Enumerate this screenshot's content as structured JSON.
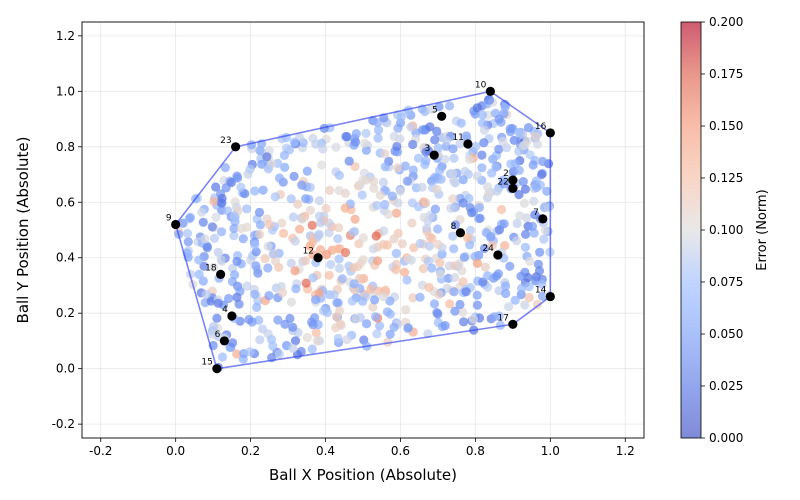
{
  "chart_data": {
    "type": "scatter",
    "title": "",
    "xlabel": "Ball X Position (Absolute)",
    "ylabel": "Ball Y Position (Absolute)",
    "xlim": [
      -0.25,
      1.25
    ],
    "ylim": [
      -0.25,
      1.25
    ],
    "xticks": [
      "-0.2",
      "0.0",
      "0.2",
      "0.4",
      "0.6",
      "0.8",
      "1.0",
      "1.2"
    ],
    "yticks": [
      "-0.2",
      "0.0",
      "0.2",
      "0.4",
      "0.6",
      "0.8",
      "1.0",
      "1.2"
    ],
    "grid": true,
    "colorbar": {
      "label": "Error (Norm)",
      "colormap": "coolwarm",
      "range": [
        0.0,
        0.2
      ],
      "ticks": [
        "0.000",
        "0.025",
        "0.050",
        "0.075",
        "0.100",
        "0.125",
        "0.150",
        "0.175",
        "0.200"
      ]
    },
    "hull_color": "#3344ee",
    "anchor_points": [
      {
        "label": "2",
        "x": 0.9,
        "y": 0.68
      },
      {
        "label": "3",
        "x": 0.69,
        "y": 0.77
      },
      {
        "label": "4",
        "x": 0.15,
        "y": 0.19
      },
      {
        "label": "5",
        "x": 0.71,
        "y": 0.91
      },
      {
        "label": "6",
        "x": 0.13,
        "y": 0.1
      },
      {
        "label": "7",
        "x": 0.98,
        "y": 0.54
      },
      {
        "label": "8",
        "x": 0.76,
        "y": 0.49
      },
      {
        "label": "9",
        "x": 0.0,
        "y": 0.52
      },
      {
        "label": "10",
        "x": 0.84,
        "y": 1.0
      },
      {
        "label": "11",
        "x": 0.78,
        "y": 0.81
      },
      {
        "label": "12",
        "x": 0.38,
        "y": 0.4
      },
      {
        "label": "14",
        "x": 1.0,
        "y": 0.26
      },
      {
        "label": "15",
        "x": 0.11,
        "y": 0.0
      },
      {
        "label": "16",
        "x": 1.0,
        "y": 0.85
      },
      {
        "label": "17",
        "x": 0.9,
        "y": 0.16
      },
      {
        "label": "18",
        "x": 0.12,
        "y": 0.34
      },
      {
        "label": "22",
        "x": 0.9,
        "y": 0.65
      },
      {
        "label": "23",
        "x": 0.16,
        "y": 0.8
      },
      {
        "label": "24",
        "x": 0.86,
        "y": 0.41
      }
    ],
    "hull": [
      [
        0.11,
        0.0
      ],
      [
        0.9,
        0.16
      ],
      [
        1.0,
        0.26
      ],
      [
        1.0,
        0.85
      ],
      [
        0.84,
        1.0
      ],
      [
        0.16,
        0.8
      ],
      [
        0.0,
        0.52
      ],
      [
        0.11,
        0.0
      ]
    ],
    "scatter_summary": "approx. 800 samples filling the hull, error values 0.00-0.20 (mostly 0.05-0.12)"
  }
}
